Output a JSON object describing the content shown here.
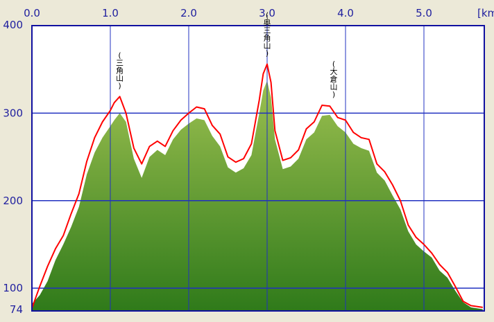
{
  "chart_data": {
    "type": "area",
    "title": "",
    "xlabel": "",
    "ylabel": "",
    "x_unit": "[km",
    "xlim": [
      0.0,
      5.75
    ],
    "ylim": [
      74,
      400
    ],
    "x_ticks": [
      0.0,
      1.0,
      2.0,
      3.0,
      4.0,
      5.0
    ],
    "x_tick_labels": [
      "0.0",
      "1.0",
      "2.0",
      "3.0",
      "4.0",
      "5.0"
    ],
    "y_ticks": [
      400,
      300,
      200,
      100,
      74
    ],
    "y_tick_labels": [
      "400",
      "300",
      "200",
      "100",
      "74"
    ],
    "grid": true,
    "colors": {
      "background": "#ece9d8",
      "plot_bg": "#ffffff",
      "grid": "#2030c0",
      "frame": "#1010a0",
      "line": "#ff0000",
      "fill_top": "#9cc050",
      "fill_bottom": "#2f7a1a",
      "tick_text": "#1f1f9f"
    },
    "series": [
      {
        "kind": "upper-line",
        "x": [
          0.0,
          0.1,
          0.2,
          0.3,
          0.4,
          0.5,
          0.6,
          0.7,
          0.8,
          0.9,
          1.0,
          1.05,
          1.12,
          1.2,
          1.3,
          1.4,
          1.5,
          1.6,
          1.7,
          1.8,
          1.9,
          2.0,
          2.1,
          2.2,
          2.3,
          2.4,
          2.5,
          2.6,
          2.7,
          2.8,
          2.9,
          2.95,
          3.0,
          3.05,
          3.1,
          3.2,
          3.3,
          3.4,
          3.5,
          3.6,
          3.7,
          3.8,
          3.9,
          4.0,
          4.1,
          4.2,
          4.3,
          4.4,
          4.5,
          4.6,
          4.7,
          4.8,
          4.9,
          5.0,
          5.1,
          5.2,
          5.3,
          5.4,
          5.5,
          5.6,
          5.75
        ],
        "y": [
          77,
          102,
          125,
          145,
          160,
          185,
          208,
          245,
          272,
          290,
          303,
          312,
          319,
          300,
          260,
          242,
          262,
          268,
          262,
          280,
          292,
          300,
          307,
          305,
          286,
          276,
          250,
          244,
          248,
          265,
          315,
          345,
          356,
          335,
          280,
          246,
          249,
          258,
          282,
          290,
          309,
          308,
          295,
          292,
          278,
          272,
          270,
          242,
          233,
          218,
          200,
          172,
          158,
          150,
          140,
          127,
          118,
          102,
          85,
          80,
          78
        ]
      },
      {
        "kind": "profile-fill",
        "x": [
          0.0,
          0.1,
          0.2,
          0.3,
          0.4,
          0.5,
          0.6,
          0.7,
          0.8,
          0.9,
          1.0,
          1.05,
          1.12,
          1.2,
          1.3,
          1.4,
          1.5,
          1.6,
          1.7,
          1.8,
          1.9,
          2.0,
          2.1,
          2.2,
          2.3,
          2.4,
          2.5,
          2.6,
          2.7,
          2.8,
          2.9,
          2.95,
          3.0,
          3.05,
          3.1,
          3.2,
          3.3,
          3.4,
          3.5,
          3.6,
          3.7,
          3.8,
          3.9,
          4.0,
          4.1,
          4.2,
          4.3,
          4.4,
          4.5,
          4.6,
          4.7,
          4.8,
          4.9,
          5.0,
          5.1,
          5.2,
          5.3,
          5.4,
          5.5,
          5.6,
          5.75
        ],
        "y": [
          82,
          92,
          108,
          132,
          150,
          170,
          193,
          230,
          255,
          272,
          285,
          292,
          300,
          290,
          248,
          226,
          250,
          258,
          252,
          270,
          281,
          288,
          294,
          292,
          274,
          262,
          238,
          232,
          237,
          252,
          300,
          326,
          337,
          318,
          270,
          236,
          239,
          248,
          270,
          278,
          297,
          298,
          285,
          278,
          265,
          260,
          257,
          232,
          223,
          206,
          190,
          165,
          150,
          142,
          135,
          120,
          112,
          97,
          84,
          78,
          76
        ]
      }
    ],
    "annotations": [
      {
        "x": 1.12,
        "y": 319,
        "text": "(三角山)",
        "chars": [
          "(",
          "三",
          "角",
          "山",
          ")"
        ]
      },
      {
        "x": 3.0,
        "y": 356,
        "text": "(奥三角山)",
        "chars": [
          "(",
          "奥",
          "三",
          "角",
          "山",
          ")"
        ]
      },
      {
        "x": 3.85,
        "y": 309,
        "text": "(大倉山)",
        "chars": [
          "(",
          "大",
          "倉",
          "山",
          ")"
        ]
      }
    ]
  }
}
